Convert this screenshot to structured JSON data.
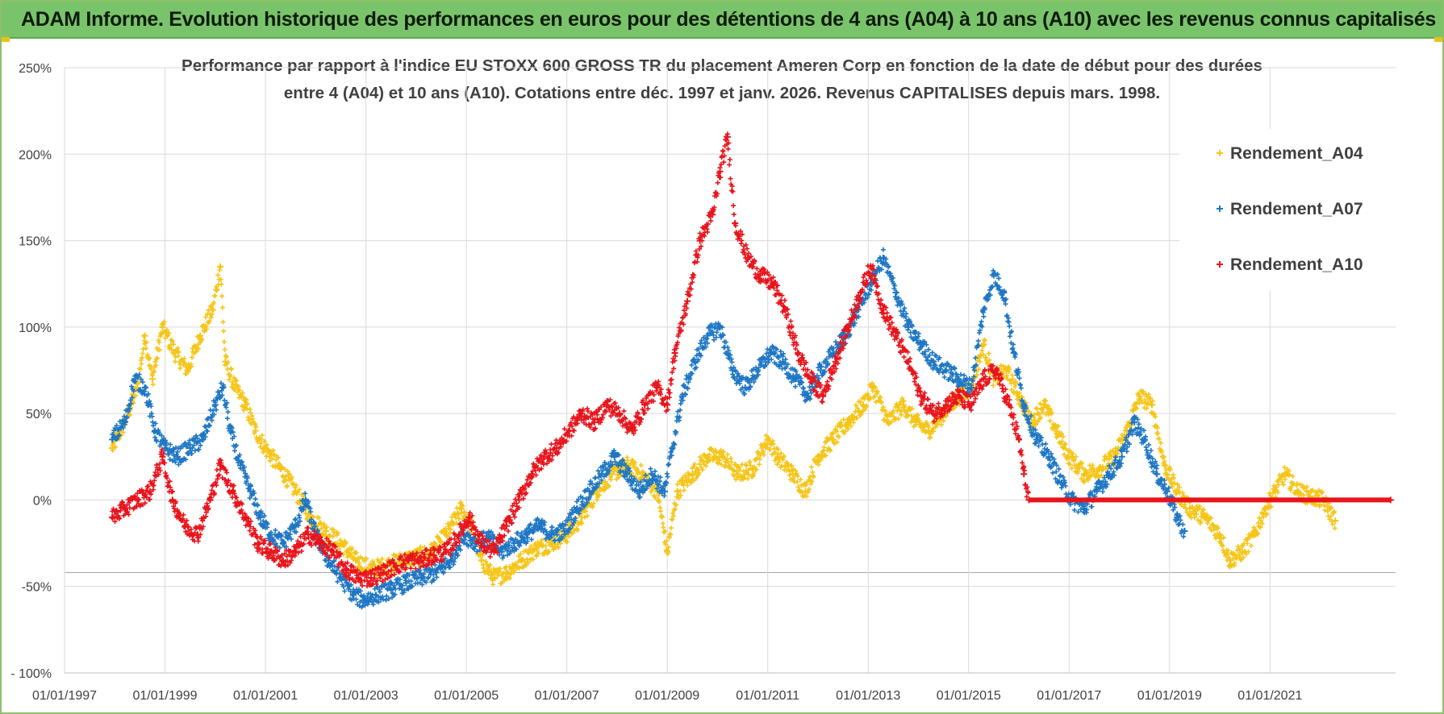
{
  "header": {
    "banner": "ADAM Informe. Evolution historique des performances en euros pour des détentions de 4 ans (A04) à 10 ans (A10) avec les revenus connus capitalisés"
  },
  "colors": {
    "banner_bg": "#79c46b",
    "a04": "#f5c518",
    "a07": "#1f77c4",
    "a10": "#e8141c",
    "grid": "#d9d9d9",
    "text": "#404040"
  },
  "chart_data": {
    "type": "scatter",
    "title_line1": "Performance par rapport à l'indice EU STOXX 600 GROSS TR  du placement Ameren Corp en fonction de la date de début pour des durées",
    "title_line2": "entre 4 (A04) et 10 ans (A10). Cotations entre déc. 1997 et janv. 2026. Revenus CAPITALISES depuis mars. 1998.",
    "xlabel": "",
    "ylabel": "",
    "x_ticks": [
      "01/01/1997",
      "01/01/1999",
      "01/01/2001",
      "01/01/2003",
      "01/01/2005",
      "01/01/2007",
      "01/01/2009",
      "01/01/2011",
      "01/01/2013",
      "01/01/2015",
      "01/01/2017",
      "01/01/2019",
      "01/01/2021"
    ],
    "x_range": [
      1997.0,
      2023.5
    ],
    "y_ticks": [
      "250%",
      "200%",
      "150%",
      "100%",
      "50%",
      "0%",
      "-50%",
      "- 100%"
    ],
    "ylim": [
      -100,
      250
    ],
    "grid": true,
    "legend_position": "top-right",
    "series": [
      {
        "name": "Rendement_A04",
        "color_key": "a04",
        "points": [
          [
            1997.95,
            30
          ],
          [
            1998.2,
            45
          ],
          [
            1998.45,
            65
          ],
          [
            1998.6,
            95
          ],
          [
            1998.75,
            70
          ],
          [
            1998.95,
            100
          ],
          [
            1999.2,
            85
          ],
          [
            1999.45,
            75
          ],
          [
            1999.7,
            95
          ],
          [
            1999.95,
            110
          ],
          [
            2000.1,
            135
          ],
          [
            2000.2,
            80
          ],
          [
            2000.4,
            65
          ],
          [
            2000.6,
            55
          ],
          [
            2000.8,
            40
          ],
          [
            2001.0,
            30
          ],
          [
            2001.3,
            18
          ],
          [
            2001.6,
            5
          ],
          [
            2001.9,
            -10
          ],
          [
            2002.2,
            -18
          ],
          [
            2002.5,
            -25
          ],
          [
            2002.8,
            -35
          ],
          [
            2003.1,
            -40
          ],
          [
            2003.4,
            -38
          ],
          [
            2003.7,
            -35
          ],
          [
            2004.0,
            -33
          ],
          [
            2004.3,
            -30
          ],
          [
            2004.6,
            -20
          ],
          [
            2004.9,
            -5
          ],
          [
            2005.1,
            -15
          ],
          [
            2005.3,
            -35
          ],
          [
            2005.55,
            -45
          ],
          [
            2005.8,
            -42
          ],
          [
            2006.1,
            -35
          ],
          [
            2006.4,
            -28
          ],
          [
            2006.7,
            -25
          ],
          [
            2007.0,
            -20
          ],
          [
            2007.3,
            -10
          ],
          [
            2007.6,
            5
          ],
          [
            2007.9,
            15
          ],
          [
            2008.2,
            20
          ],
          [
            2008.5,
            15
          ],
          [
            2008.8,
            5
          ],
          [
            2009.0,
            -30
          ],
          [
            2009.2,
            5
          ],
          [
            2009.5,
            15
          ],
          [
            2009.8,
            25
          ],
          [
            2010.1,
            25
          ],
          [
            2010.4,
            15
          ],
          [
            2010.7,
            18
          ],
          [
            2011.0,
            35
          ],
          [
            2011.2,
            25
          ],
          [
            2011.5,
            15
          ],
          [
            2011.75,
            5
          ],
          [
            2012.0,
            25
          ],
          [
            2012.3,
            35
          ],
          [
            2012.6,
            45
          ],
          [
            2012.9,
            55
          ],
          [
            2013.1,
            65
          ],
          [
            2013.4,
            45
          ],
          [
            2013.7,
            55
          ],
          [
            2013.95,
            45
          ],
          [
            2014.2,
            40
          ],
          [
            2014.5,
            50
          ],
          [
            2014.8,
            60
          ],
          [
            2015.05,
            65
          ],
          [
            2015.3,
            90
          ],
          [
            2015.5,
            70
          ],
          [
            2015.75,
            75
          ],
          [
            2016.0,
            60
          ],
          [
            2016.25,
            45
          ],
          [
            2016.5,
            55
          ],
          [
            2016.75,
            40
          ],
          [
            2017.0,
            25
          ],
          [
            2017.3,
            15
          ],
          [
            2017.6,
            18
          ],
          [
            2017.9,
            25
          ],
          [
            2018.15,
            40
          ],
          [
            2018.4,
            60
          ],
          [
            2018.65,
            55
          ],
          [
            2018.9,
            20
          ],
          [
            2019.15,
            5
          ],
          [
            2019.4,
            -5
          ],
          [
            2019.7,
            -10
          ],
          [
            2020.0,
            -20
          ],
          [
            2020.2,
            -35
          ],
          [
            2020.45,
            -30
          ],
          [
            2020.7,
            -20
          ],
          [
            2020.9,
            -5
          ],
          [
            2021.1,
            5
          ],
          [
            2021.3,
            15
          ],
          [
            2021.55,
            5
          ],
          [
            2021.8,
            2
          ],
          [
            2022.05,
            0
          ],
          [
            2022.3,
            -12
          ]
        ]
      },
      {
        "name": "Rendement_A07",
        "color_key": "a07",
        "points": [
          [
            1997.95,
            35
          ],
          [
            1998.2,
            45
          ],
          [
            1998.4,
            70
          ],
          [
            1998.6,
            65
          ],
          [
            1998.8,
            40
          ],
          [
            1999.0,
            30
          ],
          [
            1999.25,
            25
          ],
          [
            1999.5,
            30
          ],
          [
            1999.75,
            35
          ],
          [
            2000.0,
            55
          ],
          [
            2000.15,
            65
          ],
          [
            2000.3,
            40
          ],
          [
            2000.5,
            20
          ],
          [
            2000.7,
            5
          ],
          [
            2000.9,
            -10
          ],
          [
            2001.1,
            -20
          ],
          [
            2001.35,
            -25
          ],
          [
            2001.6,
            -15
          ],
          [
            2001.8,
            0
          ],
          [
            2002.0,
            -20
          ],
          [
            2002.25,
            -35
          ],
          [
            2002.5,
            -45
          ],
          [
            2002.75,
            -55
          ],
          [
            2002.95,
            -58
          ],
          [
            2003.2,
            -55
          ],
          [
            2003.5,
            -52
          ],
          [
            2003.8,
            -48
          ],
          [
            2004.1,
            -45
          ],
          [
            2004.4,
            -42
          ],
          [
            2004.7,
            -35
          ],
          [
            2004.95,
            -20
          ],
          [
            2005.2,
            -25
          ],
          [
            2005.45,
            -22
          ],
          [
            2005.7,
            -30
          ],
          [
            2005.95,
            -25
          ],
          [
            2006.2,
            -20
          ],
          [
            2006.45,
            -15
          ],
          [
            2006.7,
            -20
          ],
          [
            2006.95,
            -18
          ],
          [
            2007.2,
            -5
          ],
          [
            2007.45,
            5
          ],
          [
            2007.7,
            15
          ],
          [
            2007.95,
            25
          ],
          [
            2008.2,
            15
          ],
          [
            2008.45,
            5
          ],
          [
            2008.7,
            15
          ],
          [
            2008.95,
            5
          ],
          [
            2009.1,
            30
          ],
          [
            2009.3,
            60
          ],
          [
            2009.55,
            80
          ],
          [
            2009.8,
            95
          ],
          [
            2010.05,
            100
          ],
          [
            2010.3,
            75
          ],
          [
            2010.55,
            65
          ],
          [
            2010.8,
            75
          ],
          [
            2011.05,
            85
          ],
          [
            2011.3,
            80
          ],
          [
            2011.55,
            70
          ],
          [
            2011.8,
            60
          ],
          [
            2012.05,
            75
          ],
          [
            2012.3,
            85
          ],
          [
            2012.55,
            95
          ],
          [
            2012.8,
            110
          ],
          [
            2013.05,
            125
          ],
          [
            2013.3,
            140
          ],
          [
            2013.55,
            120
          ],
          [
            2013.8,
            100
          ],
          [
            2014.05,
            90
          ],
          [
            2014.3,
            80
          ],
          [
            2014.55,
            75
          ],
          [
            2014.8,
            70
          ],
          [
            2015.05,
            65
          ],
          [
            2015.3,
            110
          ],
          [
            2015.5,
            130
          ],
          [
            2015.7,
            120
          ],
          [
            2015.9,
            85
          ],
          [
            2016.1,
            55
          ],
          [
            2016.35,
            35
          ],
          [
            2016.6,
            25
          ],
          [
            2016.85,
            10
          ],
          [
            2017.05,
            0
          ],
          [
            2017.3,
            -5
          ],
          [
            2017.55,
            5
          ],
          [
            2017.8,
            15
          ],
          [
            2018.05,
            25
          ],
          [
            2018.3,
            45
          ],
          [
            2018.5,
            35
          ],
          [
            2018.75,
            15
          ],
          [
            2018.95,
            5
          ],
          [
            2019.15,
            -10
          ],
          [
            2019.3,
            -18
          ]
        ]
      },
      {
        "name": "Rendement_A10",
        "color_key": "a10",
        "points": [
          [
            1997.95,
            -10
          ],
          [
            1998.2,
            -5
          ],
          [
            1998.45,
            0
          ],
          [
            1998.7,
            5
          ],
          [
            1998.95,
            25
          ],
          [
            1999.15,
            0
          ],
          [
            1999.4,
            -15
          ],
          [
            1999.65,
            -20
          ],
          [
            1999.9,
            0
          ],
          [
            2000.1,
            20
          ],
          [
            2000.35,
            5
          ],
          [
            2000.6,
            -10
          ],
          [
            2000.85,
            -25
          ],
          [
            2001.1,
            -30
          ],
          [
            2001.35,
            -35
          ],
          [
            2001.6,
            -30
          ],
          [
            2001.85,
            -20
          ],
          [
            2002.1,
            -25
          ],
          [
            2002.35,
            -30
          ],
          [
            2002.6,
            -40
          ],
          [
            2002.85,
            -45
          ],
          [
            2003.1,
            -45
          ],
          [
            2003.35,
            -42
          ],
          [
            2003.6,
            -38
          ],
          [
            2003.85,
            -35
          ],
          [
            2004.1,
            -35
          ],
          [
            2004.35,
            -32
          ],
          [
            2004.6,
            -30
          ],
          [
            2004.85,
            -20
          ],
          [
            2005.05,
            -10
          ],
          [
            2005.3,
            -25
          ],
          [
            2005.55,
            -30
          ],
          [
            2005.8,
            -15
          ],
          [
            2006.05,
            0
          ],
          [
            2006.3,
            15
          ],
          [
            2006.55,
            25
          ],
          [
            2006.8,
            30
          ],
          [
            2007.05,
            40
          ],
          [
            2007.3,
            50
          ],
          [
            2007.55,
            45
          ],
          [
            2007.8,
            55
          ],
          [
            2008.05,
            50
          ],
          [
            2008.3,
            40
          ],
          [
            2008.55,
            55
          ],
          [
            2008.8,
            65
          ],
          [
            2009.0,
            55
          ],
          [
            2009.15,
            85
          ],
          [
            2009.4,
            115
          ],
          [
            2009.65,
            150
          ],
          [
            2009.9,
            165
          ],
          [
            2010.05,
            190
          ],
          [
            2010.2,
            210
          ],
          [
            2010.35,
            160
          ],
          [
            2010.6,
            140
          ],
          [
            2010.85,
            130
          ],
          [
            2011.1,
            125
          ],
          [
            2011.35,
            110
          ],
          [
            2011.6,
            85
          ],
          [
            2011.85,
            70
          ],
          [
            2012.1,
            60
          ],
          [
            2012.35,
            80
          ],
          [
            2012.6,
            100
          ],
          [
            2012.85,
            120
          ],
          [
            2013.05,
            135
          ],
          [
            2013.3,
            110
          ],
          [
            2013.55,
            95
          ],
          [
            2013.8,
            80
          ],
          [
            2014.05,
            60
          ],
          [
            2014.3,
            50
          ],
          [
            2014.55,
            55
          ],
          [
            2014.8,
            60
          ],
          [
            2015.05,
            55
          ],
          [
            2015.3,
            70
          ],
          [
            2015.55,
            75
          ],
          [
            2015.8,
            55
          ],
          [
            2016.0,
            35
          ],
          [
            2016.1,
            15
          ],
          [
            2016.2,
            0
          ],
          [
            2023.4,
            0
          ]
        ]
      }
    ]
  }
}
